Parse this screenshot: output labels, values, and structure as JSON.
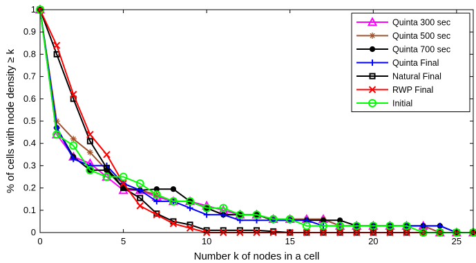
{
  "chart_data": {
    "type": "line",
    "xlabel": "Number k of nodes in a cell",
    "ylabel": "% of cells with node density ≥ k",
    "xlim": [
      0,
      26
    ],
    "ylim": [
      0,
      1
    ],
    "xticks": [
      "0",
      "5",
      "10",
      "15",
      "20",
      "25"
    ],
    "yticks": [
      "0",
      "0.1",
      "0.2",
      "0.3",
      "0.4",
      "0.5",
      "0.6",
      "0.7",
      "0.8",
      "0.9",
      "1"
    ],
    "grid": false,
    "legend_position": "top-right",
    "series": [
      {
        "name": "Quinta 300 sec",
        "color": "#ff00ff",
        "marker": "triangle",
        "x": [
          0,
          1,
          2,
          3,
          4,
          5,
          6,
          7,
          8,
          9,
          10,
          11,
          12,
          13,
          14,
          15,
          16,
          17,
          18,
          19,
          20,
          21,
          22,
          23,
          24,
          25,
          26
        ],
        "y": [
          1,
          0.44,
          0.34,
          0.31,
          0.25,
          0.19,
          0.19,
          0.16,
          0.14,
          0.14,
          0.12,
          0.1,
          0.08,
          0.08,
          0.06,
          0.06,
          0.06,
          0.06,
          0.03,
          0.03,
          0.03,
          0.03,
          0.03,
          0.03,
          0,
          0,
          0
        ]
      },
      {
        "name": "Quinta 500 sec",
        "color": "#a0522d",
        "marker": "star",
        "x": [
          0,
          1,
          2,
          3,
          4,
          5,
          6,
          7,
          8,
          9,
          10,
          11,
          12,
          13,
          14,
          15,
          16,
          17,
          18,
          19,
          20,
          21,
          22,
          23,
          24,
          25,
          26
        ],
        "y": [
          1,
          0.5,
          0.42,
          0.36,
          0.28,
          0.22,
          0.19,
          0.17,
          0.14,
          0.14,
          0.11,
          0.08,
          0.08,
          0.08,
          0.06,
          0.06,
          0.06,
          0.06,
          0.03,
          0.03,
          0.03,
          0.03,
          0.03,
          0.03,
          0,
          0,
          0
        ]
      },
      {
        "name": "Quinta 700 sec",
        "color": "#000000",
        "marker": "circle",
        "x": [
          0,
          1,
          2,
          3,
          4,
          5,
          6,
          7,
          8,
          9,
          10,
          11,
          12,
          13,
          14,
          15,
          16,
          17,
          18,
          19,
          20,
          21,
          22,
          23,
          24,
          25,
          26
        ],
        "y": [
          1,
          0.47,
          0.34,
          0.28,
          0.28,
          0.2,
          0.19,
          0.195,
          0.195,
          0.14,
          0.11,
          0.08,
          0.08,
          0.08,
          0.055,
          0.055,
          0.055,
          0.055,
          0.055,
          0.03,
          0.03,
          0.03,
          0.03,
          0.03,
          0.03,
          0,
          0
        ]
      },
      {
        "name": "Quinta Final",
        "color": "#0000ff",
        "marker": "plus",
        "x": [
          0,
          1,
          2,
          3,
          4,
          5,
          6,
          7,
          8,
          9,
          10,
          11,
          12,
          13,
          14,
          15,
          16,
          17,
          18,
          19,
          20,
          21,
          22,
          23,
          24,
          25,
          26
        ],
        "y": [
          1,
          0.47,
          0.33,
          0.3,
          0.3,
          0.22,
          0.19,
          0.14,
          0.14,
          0.11,
          0.08,
          0.08,
          0.055,
          0.055,
          0.055,
          0.055,
          0.055,
          0.03,
          0.03,
          0.03,
          0.03,
          0.03,
          0.03,
          0.03,
          0.03,
          0,
          0
        ]
      },
      {
        "name": "Natural Final",
        "color": "#000000",
        "marker": "square",
        "x": [
          0,
          1,
          2,
          3,
          4,
          5,
          6,
          7,
          8,
          9,
          10,
          11,
          12,
          13,
          14,
          15,
          16,
          17,
          18,
          19,
          20,
          21,
          22,
          23,
          24,
          25,
          26
        ],
        "y": [
          1,
          0.8,
          0.6,
          0.41,
          0.29,
          0.2,
          0.155,
          0.085,
          0.05,
          0.035,
          0.01,
          0.01,
          0.01,
          0.01,
          0.005,
          0,
          0,
          0,
          0,
          0,
          0,
          0,
          0,
          0,
          0,
          0,
          0
        ]
      },
      {
        "name": "RWP Final",
        "color": "#ff0000",
        "marker": "x",
        "x": [
          0,
          1,
          2,
          3,
          4,
          5,
          6,
          7,
          8,
          9,
          10,
          11,
          12,
          13,
          14,
          15,
          16,
          17,
          18,
          19,
          20,
          21,
          22,
          23,
          24,
          25,
          26
        ],
        "y": [
          1,
          0.84,
          0.62,
          0.44,
          0.35,
          0.22,
          0.12,
          0.08,
          0.04,
          0.02,
          0,
          0,
          0,
          0,
          0,
          0,
          0,
          0,
          0,
          0,
          0,
          0,
          0,
          0,
          0,
          0,
          0
        ]
      },
      {
        "name": "Initial",
        "color": "#00ff00",
        "marker": "circle-open",
        "x": [
          0,
          1,
          2,
          3,
          4,
          5,
          6,
          7,
          8,
          9,
          10,
          11,
          12,
          13,
          14,
          15,
          16,
          17,
          18,
          19,
          20,
          21,
          22,
          23,
          24,
          25,
          26
        ],
        "y": [
          1,
          0.44,
          0.39,
          0.28,
          0.25,
          0.25,
          0.22,
          0.17,
          0.14,
          0.14,
          0.11,
          0.11,
          0.08,
          0.08,
          0.06,
          0.06,
          0.03,
          0.03,
          0.03,
          0.03,
          0.03,
          0.03,
          0.03,
          0,
          0,
          0,
          0
        ]
      }
    ]
  }
}
